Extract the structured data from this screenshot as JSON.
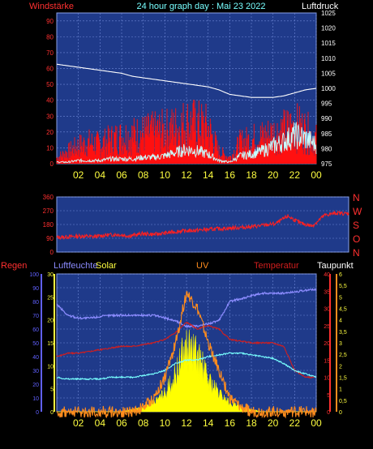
{
  "header": {
    "left_label": "Windstärke",
    "title": "24 hour graph day : Mai 23 2022",
    "right_label": "Luftdruck"
  },
  "colors": {
    "panel_bg": "#1f3a8a",
    "grid": "#6d86d6",
    "wind": "#ff1010",
    "gust": "#c8ffff",
    "pressure": "#ffffff",
    "dir": "#ff2020",
    "humidity": "#8c8cff",
    "solar": "#ffff00",
    "uv": "#ff8c1e",
    "temp": "#d21e1e",
    "dew": "#78ffff",
    "axis_red": "#ff3030",
    "axis_yellow": "#ffff40",
    "axis_blue": "#6060ff"
  },
  "x_axis": {
    "hour_labels": [
      "02",
      "04",
      "06",
      "08",
      "10",
      "12",
      "14",
      "16",
      "18",
      "20",
      "22",
      "00"
    ]
  },
  "chart_data": [
    {
      "type": "line",
      "id": "wind-pressure",
      "left_axis_ticks": [
        0,
        10,
        20,
        30,
        40,
        50,
        60,
        70,
        80,
        90
      ],
      "ylim": [
        0,
        95
      ],
      "right_axis_ticks": [
        975,
        980,
        985,
        990,
        995,
        1000,
        1005,
        1010,
        1015,
        1020,
        1025
      ],
      "y2lim": [
        975,
        1025
      ],
      "x": [
        0,
        1,
        2,
        3,
        4,
        5,
        6,
        7,
        8,
        9,
        10,
        11,
        12,
        13,
        14,
        15,
        16,
        17,
        18,
        19,
        20,
        21,
        22,
        23,
        24
      ],
      "series": [
        {
          "key": "wind",
          "values": [
            4,
            8,
            12,
            14,
            13,
            16,
            18,
            19,
            20,
            21,
            22,
            24,
            27,
            26,
            24,
            8,
            4,
            14,
            16,
            18,
            20,
            22,
            25,
            22,
            16
          ]
        },
        {
          "key": "gust",
          "values": [
            1,
            1,
            2,
            2,
            2,
            3,
            3,
            3,
            4,
            4,
            5,
            7,
            9,
            8,
            6,
            2,
            1,
            5,
            6,
            8,
            11,
            14,
            18,
            16,
            12
          ]
        },
        {
          "key": "pressure",
          "values": [
            1008,
            1007.5,
            1007,
            1006.5,
            1006,
            1005.5,
            1005,
            1004,
            1003.5,
            1003,
            1002.5,
            1002,
            1001.5,
            1001,
            1000.5,
            999.5,
            998,
            997.5,
            997,
            997,
            997,
            997.5,
            998.5,
            999.5,
            1000
          ]
        }
      ]
    },
    {
      "type": "line",
      "id": "wind-direction",
      "left_axis_ticks": [
        0,
        90,
        180,
        270,
        360
      ],
      "ylim": [
        0,
        360
      ],
      "compass": [
        "N",
        "W",
        "S",
        "O",
        "N"
      ],
      "x": [
        0,
        1,
        2,
        3,
        4,
        5,
        6,
        7,
        8,
        9,
        10,
        11,
        12,
        13,
        14,
        15,
        16,
        17,
        18,
        19,
        20,
        21,
        22,
        23,
        24
      ],
      "series": [
        {
          "key": "dir",
          "values": [
            95,
            100,
            105,
            100,
            110,
            115,
            105,
            120,
            115,
            125,
            135,
            140,
            145,
            150,
            155,
            160,
            165,
            175,
            185,
            235,
            190,
            170,
            240,
            255,
            250
          ]
        }
      ]
    },
    {
      "type": "line",
      "id": "climate",
      "legend": [
        "Regen",
        "Luftfeuchte",
        "Solar",
        "UV",
        "Temperatur",
        "Taupunkt"
      ],
      "rain_ticks": [
        0,
        10,
        20,
        30,
        40,
        50,
        60,
        70,
        80,
        90,
        100
      ],
      "solar_ticks": [
        0,
        5,
        10,
        15,
        20,
        25,
        30
      ],
      "temp_ticks": [
        0,
        5,
        10,
        15,
        20,
        25,
        30,
        35,
        40
      ],
      "uv_ticks": [
        "0",
        "0,5",
        "1",
        "1,5",
        "2",
        "2,5",
        "3",
        "3,5",
        "4",
        "4,5",
        "5",
        "5,5",
        "6"
      ],
      "x": [
        0,
        1,
        2,
        3,
        4,
        5,
        6,
        7,
        8,
        9,
        10,
        11,
        12,
        13,
        14,
        15,
        16,
        17,
        18,
        19,
        20,
        21,
        22,
        23,
        24
      ],
      "series": [
        {
          "key": "humidity",
          "axis": "rain",
          "values": [
            78,
            70,
            68,
            68,
            69,
            70,
            70,
            70,
            70,
            70,
            68,
            66,
            62,
            62,
            64,
            66,
            80,
            82,
            84,
            86,
            86,
            86,
            87,
            88,
            89
          ]
        },
        {
          "key": "temp",
          "axis": "temp",
          "values": [
            16,
            17,
            17,
            17.5,
            18,
            18.5,
            19,
            19,
            19.5,
            20,
            21,
            23,
            26,
            24,
            25,
            24,
            21,
            20.5,
            20,
            20,
            20,
            19,
            12,
            10,
            10
          ]
        },
        {
          "key": "dew",
          "axis": "temp",
          "values": [
            10,
            9.5,
            9.5,
            9.5,
            9.5,
            10,
            10,
            10,
            10.5,
            11,
            12,
            14,
            15,
            15,
            16,
            16.5,
            17,
            17,
            16.5,
            16,
            15.5,
            14,
            12,
            11,
            10
          ]
        },
        {
          "key": "solar",
          "axis": "solar",
          "values": [
            0,
            0,
            0,
            0,
            0,
            0,
            0,
            0.5,
            1,
            2,
            4,
            8,
            14,
            12,
            7,
            4,
            2,
            1,
            0.5,
            0,
            0,
            0,
            0,
            0,
            0
          ]
        },
        {
          "key": "uv",
          "axis": "uv",
          "values": [
            0,
            0,
            0,
            0,
            0,
            0,
            0,
            0,
            0.2,
            0.6,
            1.5,
            3,
            5.2,
            4.5,
            3,
            1.8,
            0.6,
            0.2,
            0,
            0,
            0,
            0,
            0,
            0,
            0
          ]
        }
      ]
    }
  ]
}
